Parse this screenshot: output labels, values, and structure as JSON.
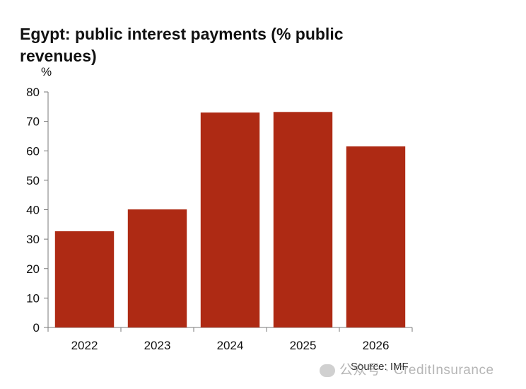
{
  "chart_data": {
    "type": "bar",
    "title": "Egypt: public interest payments (% public revenues)",
    "ylabel": "%",
    "xlabel": "",
    "categories": [
      "2022",
      "2023",
      "2024",
      "2025",
      "2026"
    ],
    "values": [
      32.7,
      40.1,
      73.0,
      73.2,
      61.5
    ],
    "ylim": [
      0,
      80
    ],
    "yticks": [
      0,
      10,
      20,
      30,
      40,
      50,
      60,
      70,
      80
    ],
    "bar_color": "#ae2a14",
    "grid": false,
    "source": "Source: IMF"
  },
  "watermark": {
    "text": "公众号 · CreditInsurance"
  }
}
